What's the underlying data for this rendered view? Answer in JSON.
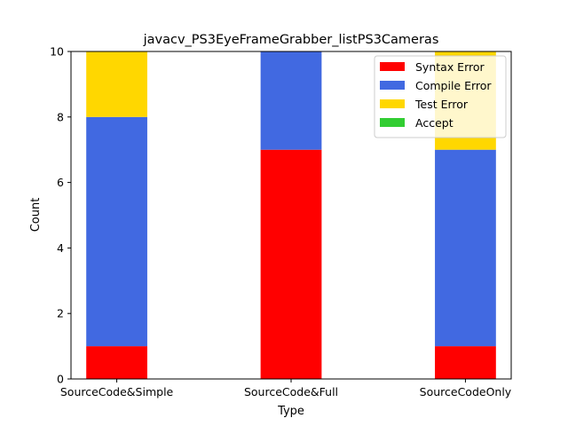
{
  "chart_data": {
    "type": "bar",
    "stacked": true,
    "title": "javacv_PS3EyeFrameGrabber_listPS3Cameras",
    "xlabel": "Type",
    "ylabel": "Count",
    "ylim": [
      0,
      10
    ],
    "yticks": [
      "0",
      "2",
      "4",
      "6",
      "8",
      "10"
    ],
    "categories": [
      "SourceCode&Simple",
      "SourceCode&Full",
      "SourceCodeOnly"
    ],
    "series": [
      {
        "name": "Syntax Error",
        "color": "#ff0000",
        "values": [
          1,
          7,
          1
        ]
      },
      {
        "name": "Compile Error",
        "color": "#4169e1",
        "values": [
          7,
          3,
          6
        ]
      },
      {
        "name": "Test Error",
        "color": "#ffd700",
        "values": [
          2,
          0,
          3
        ]
      },
      {
        "name": "Accept",
        "color": "#32cd32",
        "values": [
          0,
          0,
          0
        ]
      }
    ],
    "legend_position": "top-right",
    "grid": false
  }
}
